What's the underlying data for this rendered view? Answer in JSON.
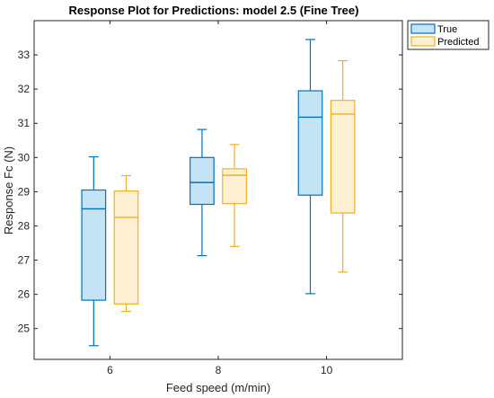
{
  "chart_data": {
    "type": "box",
    "title": "Response Plot for Predictions: model 2.5 (Fine Tree)",
    "xlabel": "Feed speed (m/min)",
    "ylabel": "Response Fc (N)",
    "categories": [
      6,
      8,
      10
    ],
    "ylim": [
      24.1,
      34.0
    ],
    "yticks": [
      25,
      26,
      27,
      28,
      29,
      30,
      31,
      32,
      33
    ],
    "xlim": [
      4.6,
      11.4
    ],
    "legend_position": "top-right-outside",
    "series": [
      {
        "name": "True",
        "color": "#0072BD",
        "fill": "#C4E3F4",
        "boxes": [
          {
            "x": 6,
            "whisker_low": 24.5,
            "q1": 25.83,
            "median": 28.5,
            "q3": 29.05,
            "whisker_high": 30.02
          },
          {
            "x": 8,
            "whisker_low": 27.13,
            "q1": 28.63,
            "median": 29.27,
            "q3": 30.0,
            "whisker_high": 30.82
          },
          {
            "x": 10,
            "whisker_low": 26.02,
            "q1": 28.9,
            "median": 31.18,
            "q3": 31.95,
            "whisker_high": 33.45
          }
        ]
      },
      {
        "name": "Predicted",
        "color": "#EDB120",
        "fill": "#FDF0D3",
        "boxes": [
          {
            "x": 6,
            "whisker_low": 25.5,
            "q1": 25.72,
            "median": 28.25,
            "q3": 29.02,
            "whisker_high": 29.47
          },
          {
            "x": 8,
            "whisker_low": 27.4,
            "q1": 28.65,
            "median": 29.48,
            "q3": 29.67,
            "whisker_high": 30.38
          },
          {
            "x": 10,
            "whisker_low": 26.65,
            "q1": 28.38,
            "median": 31.27,
            "q3": 31.67,
            "whisker_high": 32.83
          }
        ]
      }
    ]
  }
}
